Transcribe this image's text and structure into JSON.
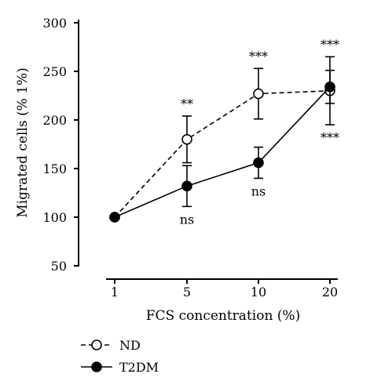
{
  "chart_data": {
    "type": "line",
    "xlabel": "FCS concentration (%)",
    "ylabel": "Migrated cells (% 1%)",
    "categories": [
      "1",
      "5",
      "10",
      "20"
    ],
    "yticks": [
      50,
      100,
      150,
      200,
      250,
      300
    ],
    "ylim": [
      50,
      300
    ],
    "grid": false,
    "legend_position": "bottom-left",
    "series": [
      {
        "name": "ND",
        "values": [
          100,
          180,
          227,
          230
        ],
        "err": [
          0,
          24,
          26,
          35
        ],
        "line_style": "dashed",
        "marker": "open-circle",
        "color": "#000000"
      },
      {
        "name": "T2DM",
        "values": [
          100,
          132,
          156,
          234
        ],
        "err": [
          0,
          21,
          16,
          17
        ],
        "line_style": "solid",
        "marker": "filled-circle",
        "color": "#000000"
      }
    ],
    "annotations": [
      {
        "category": "5",
        "text": "**",
        "series": "ND",
        "side": "above"
      },
      {
        "category": "5",
        "text": "ns",
        "series": "T2DM",
        "side": "below"
      },
      {
        "category": "10",
        "text": "***",
        "series": "ND",
        "side": "above"
      },
      {
        "category": "10",
        "text": "ns",
        "series": "T2DM",
        "side": "below"
      },
      {
        "category": "20",
        "text": "***",
        "series": "ND",
        "side": "above"
      },
      {
        "category": "20",
        "text": "***",
        "series": "ND",
        "side": "below"
      }
    ]
  }
}
